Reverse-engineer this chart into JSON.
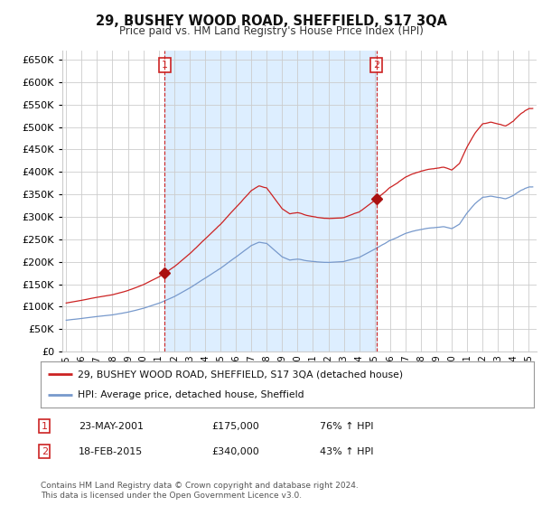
{
  "title": "29, BUSHEY WOOD ROAD, SHEFFIELD, S17 3QA",
  "subtitle": "Price paid vs. HM Land Registry's House Price Index (HPI)",
  "ylim": [
    0,
    670000
  ],
  "yticks": [
    0,
    50000,
    100000,
    150000,
    200000,
    250000,
    300000,
    350000,
    400000,
    450000,
    500000,
    550000,
    600000,
    650000
  ],
  "xlim_start": 1994.75,
  "xlim_end": 2025.5,
  "sale1_date": 2001.388,
  "sale1_price": 175000,
  "sale1_label": "1",
  "sale2_date": 2015.122,
  "sale2_price": 340000,
  "sale2_label": "2",
  "red_line_color": "#cc2222",
  "blue_line_color": "#7799cc",
  "shade_color": "#ddeeff",
  "dashed_line_color": "#cc2222",
  "marker_color": "#aa1111",
  "background_color": "#ffffff",
  "grid_color": "#cccccc",
  "legend1_text": "29, BUSHEY WOOD ROAD, SHEFFIELD, S17 3QA (detached house)",
  "legend2_text": "HPI: Average price, detached house, Sheffield",
  "note1_label": "1",
  "note1_date": "23-MAY-2001",
  "note1_price": "£175,000",
  "note1_pct": "76% ↑ HPI",
  "note2_label": "2",
  "note2_date": "18-FEB-2015",
  "note2_price": "£340,000",
  "note2_pct": "43% ↑ HPI",
  "footer": "Contains HM Land Registry data © Crown copyright and database right 2024.\nThis data is licensed under the Open Government Licence v3.0."
}
